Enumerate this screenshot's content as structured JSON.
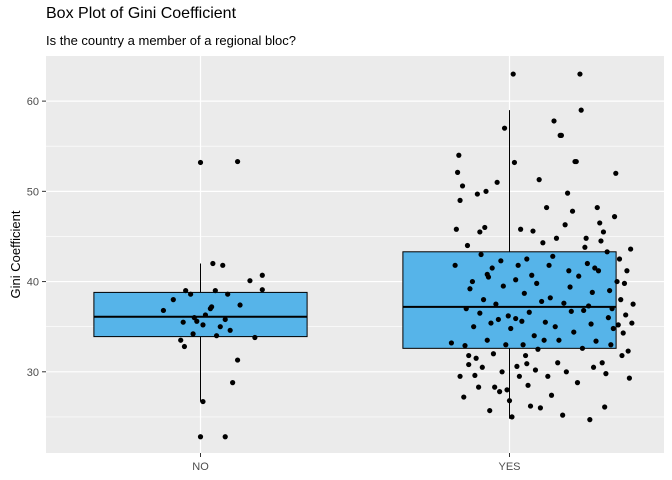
{
  "chart_data": {
    "type": "box",
    "title": "Box Plot of Gini Coefficient",
    "subtitle": "Is the country a member of a regional bloc?",
    "xlabel": "",
    "ylabel": "Gini Coefficient",
    "categories": [
      "NO",
      "YES"
    ],
    "ylim": [
      21,
      65
    ],
    "yticks": [
      30,
      40,
      50,
      60
    ],
    "grid": true,
    "legend": "none",
    "colors": {
      "panel": "#ebebeb",
      "grid": "#ffffff",
      "box_fill": "#56b4e9",
      "box_line": "#000000",
      "point": "#000000",
      "tick_text": "#4d4d4d"
    },
    "boxes": [
      {
        "category": "NO",
        "whisker_low": 26.7,
        "q1": 33.9,
        "median": 36.1,
        "q3": 38.8,
        "whisker_high": 42.0
      },
      {
        "category": "YES",
        "whisker_low": 24.8,
        "q1": 32.6,
        "median": 37.2,
        "q3": 43.3,
        "whisker_high": 59.0
      }
    ],
    "points": {
      "NO": [
        [
          -0.3,
          36.8
        ],
        [
          -0.22,
          38.0
        ],
        [
          -0.16,
          33.5
        ],
        [
          -0.14,
          35.5
        ],
        [
          -0.12,
          39.0
        ],
        [
          -0.08,
          38.6
        ],
        [
          -0.06,
          34.2
        ],
        [
          -0.03,
          35.6
        ],
        [
          0.0,
          53.2
        ],
        [
          -0.13,
          32.8
        ],
        [
          0.02,
          35.2
        ],
        [
          0.04,
          36.3
        ],
        [
          0.08,
          37.0
        ],
        [
          0.1,
          42.0
        ],
        [
          0.12,
          39.0
        ],
        [
          0.13,
          34.0
        ],
        [
          0.16,
          35.0
        ],
        [
          0.18,
          41.8
        ],
        [
          0.2,
          35.8
        ],
        [
          0.22,
          38.6
        ],
        [
          0.24,
          34.6
        ],
        [
          0.26,
          28.8
        ],
        [
          0.3,
          53.3
        ],
        [
          0.3,
          31.3
        ],
        [
          0.32,
          37.4
        ],
        [
          0.4,
          40.1
        ],
        [
          0.44,
          33.8
        ],
        [
          0.5,
          40.7
        ],
        [
          0.5,
          39.1
        ],
        [
          0.02,
          26.7
        ],
        [
          0.0,
          22.8
        ],
        [
          0.2,
          22.8
        ],
        [
          -0.05,
          36.0
        ],
        [
          0.09,
          37.2
        ]
      ],
      "YES": [
        [
          -0.47,
          33.2
        ],
        [
          -0.44,
          41.8
        ],
        [
          -0.43,
          45.8
        ],
        [
          -0.42,
          52.1
        ],
        [
          -0.41,
          54.0
        ],
        [
          -0.4,
          49.0
        ],
        [
          -0.4,
          29.5
        ],
        [
          -0.38,
          50.6
        ],
        [
          -0.37,
          27.2
        ],
        [
          -0.36,
          32.9
        ],
        [
          -0.35,
          37.0
        ],
        [
          -0.34,
          44.0
        ],
        [
          -0.33,
          30.8
        ],
        [
          -0.32,
          39.2
        ],
        [
          -0.3,
          40.0
        ],
        [
          -0.29,
          35.0
        ],
        [
          -0.28,
          29.6
        ],
        [
          -0.27,
          31.5
        ],
        [
          -0.26,
          49.7
        ],
        [
          -0.25,
          28.3
        ],
        [
          -0.24,
          36.5
        ],
        [
          -0.23,
          43.0
        ],
        [
          -0.22,
          30.5
        ],
        [
          -0.21,
          38.0
        ],
        [
          -0.2,
          46.0
        ],
        [
          -0.19,
          50.0
        ],
        [
          -0.18,
          33.5
        ],
        [
          -0.17,
          40.5
        ],
        [
          -0.16,
          25.7
        ],
        [
          -0.15,
          35.4
        ],
        [
          -0.14,
          41.5
        ],
        [
          -0.13,
          32.0
        ],
        [
          -0.12,
          28.3
        ],
        [
          -0.11,
          37.5
        ],
        [
          -0.1,
          51.0
        ],
        [
          -0.09,
          35.8
        ],
        [
          -0.08,
          27.8
        ],
        [
          -0.07,
          42.3
        ],
        [
          -0.06,
          30.0
        ],
        [
          -0.05,
          39.5
        ],
        [
          -0.04,
          57.0
        ],
        [
          -0.03,
          33.0
        ],
        [
          -0.02,
          28.0
        ],
        [
          -0.01,
          36.2
        ],
        [
          0.0,
          26.8
        ],
        [
          0.01,
          34.8
        ],
        [
          0.02,
          25.0
        ],
        [
          0.03,
          63.0
        ],
        [
          0.04,
          53.2
        ],
        [
          0.05,
          40.2
        ],
        [
          0.06,
          30.6
        ],
        [
          0.07,
          41.8
        ],
        [
          0.08,
          29.5
        ],
        [
          0.09,
          45.8
        ],
        [
          0.1,
          35.6
        ],
        [
          0.11,
          33.0
        ],
        [
          0.12,
          38.7
        ],
        [
          0.13,
          31.8
        ],
        [
          0.14,
          42.5
        ],
        [
          0.15,
          28.5
        ],
        [
          0.16,
          36.6
        ],
        [
          0.17,
          26.2
        ],
        [
          0.18,
          40.7
        ],
        [
          0.19,
          45.6
        ],
        [
          0.2,
          34.0
        ],
        [
          0.21,
          30.2
        ],
        [
          0.22,
          39.8
        ],
        [
          0.23,
          32.5
        ],
        [
          0.24,
          51.3
        ],
        [
          0.25,
          26.0
        ],
        [
          0.26,
          37.8
        ],
        [
          0.27,
          44.3
        ],
        [
          0.28,
          33.5
        ],
        [
          0.29,
          35.5
        ],
        [
          0.3,
          48.2
        ],
        [
          0.31,
          29.5
        ],
        [
          0.32,
          41.8
        ],
        [
          0.33,
          38.2
        ],
        [
          0.34,
          27.4
        ],
        [
          0.35,
          42.8
        ],
        [
          0.36,
          57.8
        ],
        [
          0.37,
          35.0
        ],
        [
          0.38,
          44.8
        ],
        [
          0.39,
          31.0
        ],
        [
          0.4,
          33.5
        ],
        [
          0.41,
          56.2
        ],
        [
          0.42,
          56.2
        ],
        [
          0.43,
          25.2
        ],
        [
          0.44,
          37.6
        ],
        [
          0.45,
          46.3
        ],
        [
          0.46,
          30.0
        ],
        [
          0.47,
          49.8
        ],
        [
          0.48,
          41.2
        ],
        [
          0.49,
          39.4
        ],
        [
          0.5,
          36.7
        ],
        [
          0.51,
          47.8
        ],
        [
          0.52,
          34.4
        ],
        [
          0.53,
          53.3
        ],
        [
          0.54,
          53.3
        ],
        [
          0.55,
          28.8
        ],
        [
          0.56,
          40.6
        ],
        [
          0.57,
          63.0
        ],
        [
          0.58,
          59.0
        ],
        [
          0.59,
          32.6
        ],
        [
          0.6,
          36.8
        ],
        [
          0.61,
          43.8
        ],
        [
          0.62,
          44.8
        ],
        [
          0.63,
          42.0
        ],
        [
          0.64,
          37.3
        ],
        [
          0.65,
          24.7
        ],
        [
          0.66,
          35.3
        ],
        [
          0.67,
          38.8
        ],
        [
          0.68,
          30.5
        ],
        [
          0.69,
          41.5
        ],
        [
          0.7,
          33.4
        ],
        [
          0.71,
          48.2
        ],
        [
          0.72,
          41.2
        ],
        [
          0.73,
          46.5
        ],
        [
          0.74,
          44.5
        ],
        [
          0.75,
          31.0
        ],
        [
          0.76,
          45.5
        ],
        [
          0.77,
          26.1
        ],
        [
          0.78,
          29.8
        ],
        [
          0.79,
          43.3
        ],
        [
          0.8,
          36.0
        ],
        [
          0.81,
          39.0
        ],
        [
          0.82,
          33.0
        ],
        [
          0.83,
          37.0
        ],
        [
          0.84,
          34.8
        ],
        [
          0.85,
          47.2
        ],
        [
          0.86,
          52.0
        ],
        [
          0.87,
          40.0
        ],
        [
          0.88,
          35.2
        ],
        [
          0.89,
          42.5
        ],
        [
          0.9,
          38.0
        ],
        [
          0.91,
          31.8
        ],
        [
          0.92,
          34.3
        ],
        [
          0.93,
          39.8
        ],
        [
          0.94,
          36.3
        ],
        [
          0.95,
          41.2
        ],
        [
          0.96,
          32.3
        ],
        [
          0.97,
          29.3
        ],
        [
          0.98,
          43.6
        ],
        [
          0.99,
          35.4
        ],
        [
          1.0,
          37.5
        ],
        [
          -0.24,
          45.5
        ],
        [
          -0.33,
          31.8
        ],
        [
          -0.18,
          40.8
        ],
        [
          0.05,
          35.9
        ],
        [
          0.14,
          30.9
        ]
      ]
    }
  }
}
